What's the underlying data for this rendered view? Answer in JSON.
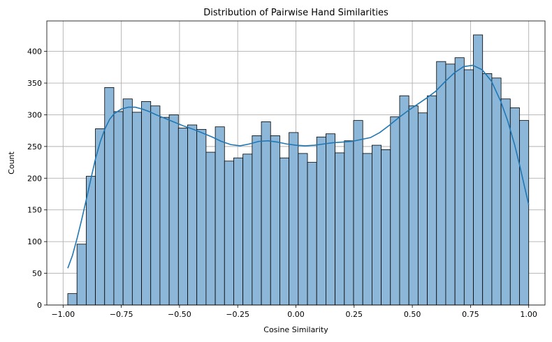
{
  "chart_data": {
    "type": "bar",
    "title": "Distribution of Pairwise Hand Similarities",
    "xlabel": "Cosine Similarity",
    "ylabel": "Count",
    "xlim": [
      -1.07,
      1.07
    ],
    "ylim": [
      0,
      448
    ],
    "grid": true,
    "bin_start": -0.98,
    "bin_width": 0.0396,
    "xticks": [
      -1.0,
      -0.75,
      -0.5,
      -0.25,
      0.0,
      0.25,
      0.5,
      0.75,
      1.0
    ],
    "xtick_labels": [
      "−1.00",
      "−0.75",
      "−0.50",
      "−0.25",
      "0.00",
      "0.25",
      "0.50",
      "0.75",
      "1.00"
    ],
    "yticks": [
      0,
      50,
      100,
      150,
      200,
      250,
      300,
      350,
      400
    ],
    "ytick_labels": [
      "0",
      "50",
      "100",
      "150",
      "200",
      "250",
      "300",
      "350",
      "400"
    ],
    "values": [
      18,
      96,
      203,
      278,
      343,
      305,
      325,
      304,
      321,
      314,
      296,
      300,
      279,
      284,
      277,
      241,
      281,
      227,
      232,
      238,
      267,
      289,
      267,
      232,
      272,
      239,
      225,
      265,
      270,
      240,
      259,
      291,
      239,
      252,
      245,
      297,
      330,
      314,
      303,
      330,
      384,
      380,
      390,
      371,
      426,
      365,
      358,
      325,
      311,
      291
    ],
    "kde": {
      "x": [
        -0.98,
        -0.96,
        -0.94,
        -0.92,
        -0.9,
        -0.88,
        -0.86,
        -0.84,
        -0.82,
        -0.8,
        -0.78,
        -0.75,
        -0.72,
        -0.69,
        -0.66,
        -0.63,
        -0.6,
        -0.56,
        -0.52,
        -0.48,
        -0.44,
        -0.4,
        -0.36,
        -0.32,
        -0.28,
        -0.24,
        -0.2,
        -0.16,
        -0.12,
        -0.08,
        -0.04,
        0.0,
        0.04,
        0.08,
        0.12,
        0.16,
        0.2,
        0.24,
        0.28,
        0.32,
        0.36,
        0.4,
        0.44,
        0.48,
        0.52,
        0.56,
        0.6,
        0.64,
        0.68,
        0.72,
        0.76,
        0.8,
        0.84,
        0.88,
        0.91,
        0.94,
        0.96,
        0.98,
        1.0
      ],
      "y": [
        58,
        78,
        105,
        135,
        167,
        200,
        232,
        258,
        278,
        293,
        302,
        309,
        312,
        312,
        309,
        305,
        300,
        294,
        288,
        282,
        277,
        271,
        265,
        258,
        253,
        251,
        254,
        258,
        259,
        257,
        254,
        252,
        251,
        252,
        254,
        256,
        257,
        258,
        261,
        264,
        272,
        283,
        295,
        306,
        316,
        326,
        337,
        352,
        366,
        376,
        378,
        371,
        353,
        321,
        290,
        252,
        222,
        190,
        158
      ]
    }
  }
}
